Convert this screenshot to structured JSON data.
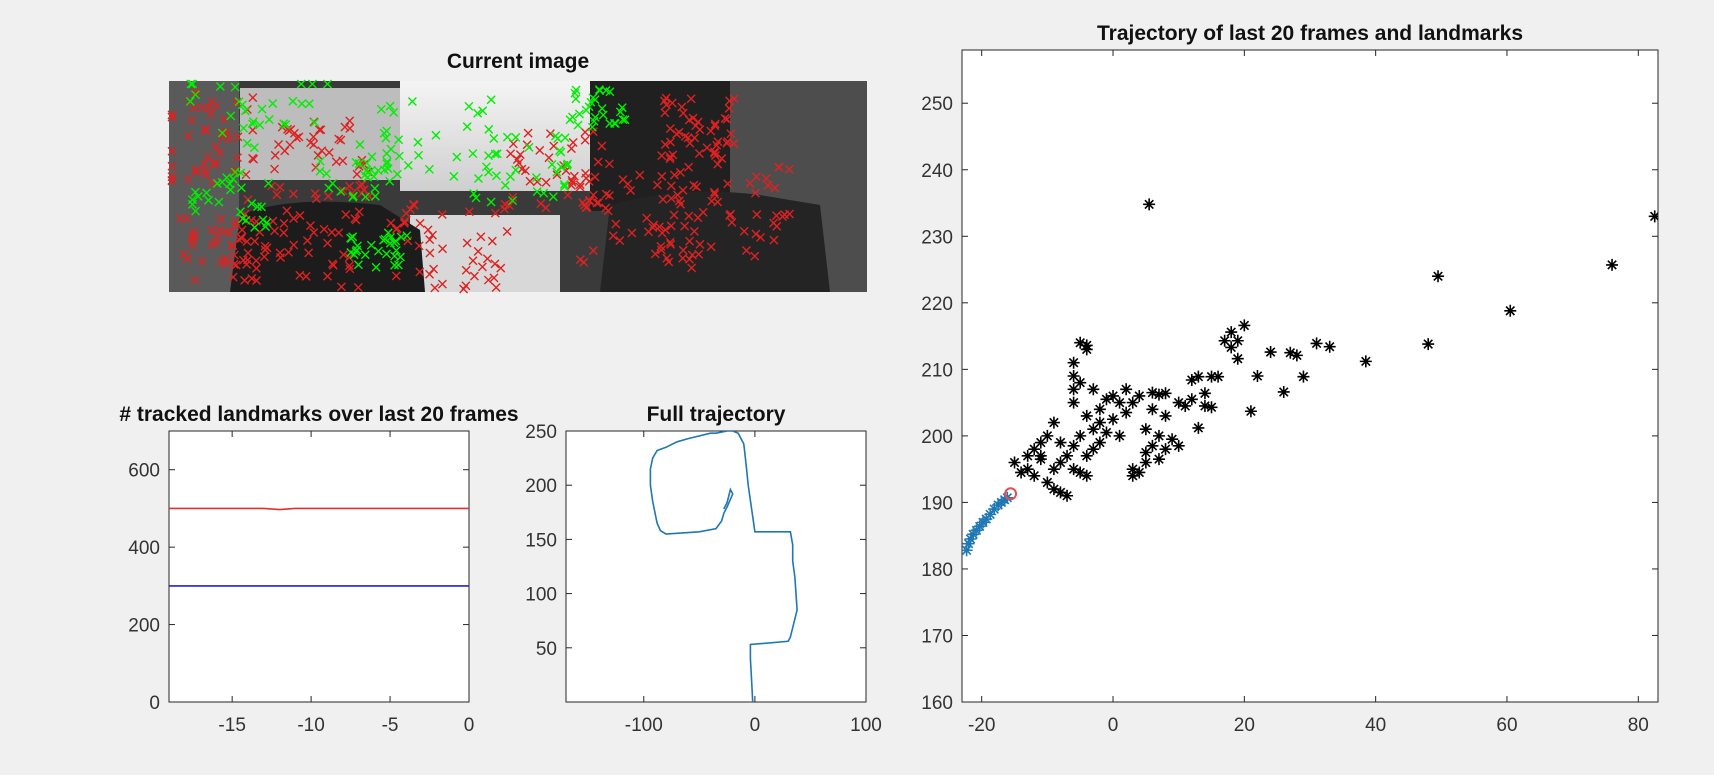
{
  "panels": {
    "current_image": {
      "title": "Current image",
      "colors": {
        "inlier": "#00ee00",
        "candidate": "#dd2222"
      }
    }
  },
  "chart_data": [
    {
      "type": "line",
      "title": "# tracked landmarks over last 20 frames",
      "xlabel": "",
      "ylabel": "",
      "xlim": [
        -19,
        0
      ],
      "ylim": [
        0,
        700
      ],
      "xticks": [
        -15,
        -10,
        -5,
        0
      ],
      "yticks": [
        0,
        200,
        400,
        600
      ],
      "grid": false,
      "series": [
        {
          "color": "#e03030",
          "x": [
            -19,
            -13,
            -12,
            -11,
            0
          ],
          "y": [
            500,
            500,
            497,
            500,
            500
          ]
        },
        {
          "color": "#2222cc",
          "x": [
            -19,
            0
          ],
          "y": [
            300,
            300
          ]
        }
      ]
    },
    {
      "type": "line",
      "title": "Full trajectory",
      "xlabel": "",
      "ylabel": "",
      "xlim": [
        -170,
        100
      ],
      "ylim": [
        0,
        250
      ],
      "xticks": [
        -100,
        0,
        100
      ],
      "yticks": [
        50,
        100,
        150,
        200,
        250
      ],
      "grid": false,
      "series": [
        {
          "color": "#1f77b4",
          "x": [
            -2,
            -3,
            -4,
            -4,
            30,
            32,
            38,
            36,
            34,
            34,
            32,
            0,
            -6,
            -8,
            -10,
            -15,
            -20,
            -25,
            -30,
            -35,
            -40,
            -60,
            -70,
            -78,
            -80,
            -88,
            -92,
            -94,
            -94,
            -92,
            -90,
            -88,
            -85,
            -80,
            -50,
            -35,
            -30,
            -28,
            -25,
            -22,
            -20,
            -22,
            -25,
            -28
          ],
          "y": [
            0,
            20,
            40,
            53,
            56,
            60,
            85,
            115,
            130,
            145,
            157,
            157,
            200,
            220,
            238,
            248,
            250,
            250,
            249,
            248,
            248,
            243,
            240,
            236,
            235,
            232,
            225,
            215,
            200,
            185,
            175,
            165,
            158,
            155,
            157,
            160,
            167,
            174,
            180,
            187,
            192,
            196,
            184,
            178
          ]
        }
      ]
    },
    {
      "type": "scatter",
      "title": "Trajectory of last 20 frames and landmarks",
      "xlabel": "",
      "ylabel": "",
      "xlim": [
        -23,
        83
      ],
      "ylim": [
        160,
        258
      ],
      "xticks": [
        -20,
        0,
        20,
        40,
        60,
        80
      ],
      "yticks": [
        160,
        170,
        180,
        190,
        200,
        210,
        220,
        230,
        240,
        250
      ],
      "grid": false,
      "series": [
        {
          "marker": "asterisk",
          "color": "#000000",
          "points": [
            [
              5.5,
              234.8
            ],
            [
              82.5,
              233.0
            ],
            [
              76,
              225.7
            ],
            [
              49.5,
              224.0
            ],
            [
              60.5,
              218.8
            ],
            [
              48,
              213.8
            ],
            [
              38.5,
              211.2
            ],
            [
              33,
              213.4
            ],
            [
              31,
              213.9
            ],
            [
              27,
              212.5
            ],
            [
              28,
              212.1
            ],
            [
              24,
              212.6
            ],
            [
              29,
              208.9
            ],
            [
              22,
              209.0
            ],
            [
              26,
              206.6
            ],
            [
              21,
              203.7
            ],
            [
              15,
              204.3
            ],
            [
              13,
              201.2
            ],
            [
              16,
              208.9
            ],
            [
              15,
              208.9
            ],
            [
              13,
              208.9
            ],
            [
              12,
              208.4
            ],
            [
              14,
              206.4
            ],
            [
              18,
              215.6
            ],
            [
              20,
              216.6
            ],
            [
              19,
              214.3
            ],
            [
              17,
              214.3
            ],
            [
              18,
              213.3
            ],
            [
              19,
              211.6
            ],
            [
              -5,
              214.0
            ],
            [
              -4,
              213.6
            ],
            [
              -4,
              213.0
            ],
            [
              -6,
              211.0
            ],
            [
              -6,
              209.0
            ],
            [
              -6,
              207.0
            ],
            [
              -6,
              205.0
            ],
            [
              -4,
              203.0
            ],
            [
              -2,
              202.0
            ],
            [
              0,
              202.5
            ],
            [
              2,
              203.5
            ],
            [
              4,
              206.0
            ],
            [
              6,
              206.5
            ],
            [
              7,
              206.2
            ],
            [
              8,
              206.4
            ],
            [
              3,
              205.0
            ],
            [
              6,
              204.0
            ],
            [
              8,
              203.0
            ],
            [
              10,
              205.0
            ],
            [
              11,
              204.5
            ],
            [
              5,
              201.0
            ],
            [
              7,
              200.0
            ],
            [
              9,
              199.5
            ],
            [
              -2,
              199.0
            ],
            [
              -3,
              198.0
            ],
            [
              -4,
              197.0
            ],
            [
              -5,
              200.0
            ],
            [
              -6,
              198.5
            ],
            [
              -8,
              199.0
            ],
            [
              -10,
              200.0
            ],
            [
              -11,
              197.0
            ],
            [
              -9,
              195.0
            ],
            [
              -10,
              193.0
            ],
            [
              -12,
              194.0
            ],
            [
              -13,
              195.0
            ],
            [
              -14,
              194.5
            ],
            [
              -15,
              196.0
            ],
            [
              -12,
              198.0
            ],
            [
              -11,
              199.0
            ],
            [
              -9,
              202.0
            ],
            [
              -7,
              197.0
            ],
            [
              -8,
              196.0
            ],
            [
              -6,
              195.0
            ],
            [
              -5,
              194.5
            ],
            [
              -4,
              194.0
            ],
            [
              -7,
              191.0
            ],
            [
              -8,
              191.5
            ],
            [
              -9,
              192.0
            ],
            [
              5,
              197.5
            ],
            [
              6,
              198.5
            ],
            [
              8,
              198.0
            ],
            [
              10,
              198.5
            ],
            [
              3,
              195.0
            ],
            [
              4,
              194.5
            ],
            [
              5,
              196.0
            ],
            [
              7,
              196.5
            ],
            [
              3,
              194.0
            ],
            [
              12,
              205.5
            ],
            [
              14,
              204.5
            ],
            [
              2,
              207.0
            ],
            [
              0,
              206.0
            ],
            [
              -1,
              205.5
            ],
            [
              -3,
              207.0
            ],
            [
              -5,
              208.0
            ],
            [
              -3,
              201.0
            ],
            [
              -1,
              200.5
            ],
            [
              1,
              200.0
            ],
            [
              -13,
              197.0
            ],
            [
              -11,
              196.5
            ],
            [
              -2,
              204.0
            ],
            [
              1,
              205.0
            ]
          ]
        },
        {
          "marker": "asterisk",
          "color": "#1f77b4",
          "points": [
            [
              -22.3,
              182.8
            ],
            [
              -22.0,
              183.8
            ],
            [
              -21.7,
              184.5
            ],
            [
              -21.3,
              185.2
            ],
            [
              -20.8,
              185.8
            ],
            [
              -20.3,
              186.4
            ],
            [
              -19.8,
              187.0
            ],
            [
              -19.3,
              187.5
            ],
            [
              -18.7,
              188.2
            ],
            [
              -18.1,
              189.0
            ],
            [
              -17.5,
              189.6
            ],
            [
              -17.0,
              190.0
            ],
            [
              -16.5,
              190.4
            ],
            [
              -16.1,
              190.7
            ]
          ]
        },
        {
          "marker": "circle",
          "color": "#e05050",
          "points": [
            [
              -15.6,
              191.3
            ]
          ]
        }
      ]
    }
  ]
}
